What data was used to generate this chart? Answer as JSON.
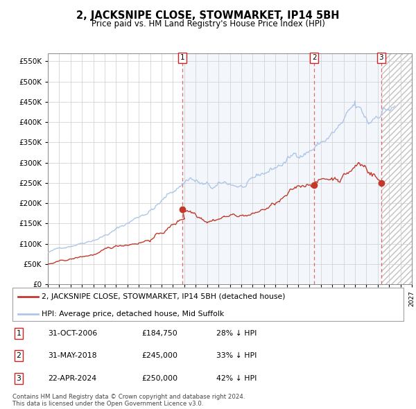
{
  "title": "2, JACKSNIPE CLOSE, STOWMARKET, IP14 5BH",
  "subtitle": "Price paid vs. HM Land Registry's House Price Index (HPI)",
  "legend_line1": "2, JACKSNIPE CLOSE, STOWMARKET, IP14 5BH (detached house)",
  "legend_line2": "HPI: Average price, detached house, Mid Suffolk",
  "sale1_date": "31-OCT-2006",
  "sale1_price": 184750,
  "sale1_pct": "28%",
  "sale2_date": "31-MAY-2018",
  "sale2_price": 245000,
  "sale2_pct": "33%",
  "sale3_date": "22-APR-2024",
  "sale3_price": 250000,
  "sale3_pct": "42%",
  "footnote1": "Contains HM Land Registry data © Crown copyright and database right 2024.",
  "footnote2": "This data is licensed under the Open Government Licence v3.0.",
  "hpi_color": "#aec6e8",
  "price_color": "#c0392b",
  "ylim": [
    0,
    570000
  ],
  "xlim_start": 1995.0,
  "xlim_end": 2027.0,
  "sale1_x": 2006.83,
  "sale2_x": 2018.42,
  "sale3_x": 2024.31
}
